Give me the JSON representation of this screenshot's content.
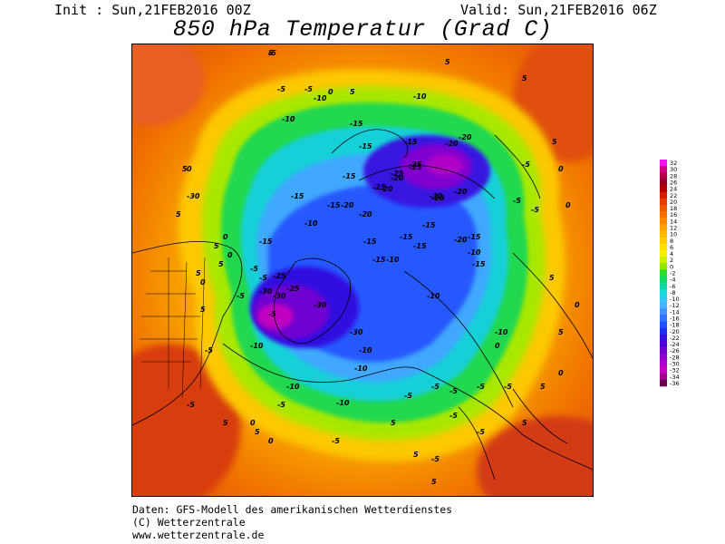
{
  "header": {
    "init": "Init : Sun,21FEB2016 00Z",
    "valid": "Valid: Sun,21FEB2016 06Z",
    "title": "850 hPa Temperatur (Grad C)"
  },
  "legend": {
    "ticks": [
      "32",
      "30",
      "28",
      "26",
      "24",
      "22",
      "20",
      "18",
      "16",
      "14",
      "12",
      "10",
      "8",
      "6",
      "4",
      "2",
      "0",
      "-2",
      "-4",
      "-6",
      "-8",
      "-10",
      "-12",
      "-14",
      "-16",
      "-18",
      "-20",
      "-22",
      "-24",
      "-26",
      "-28",
      "-30",
      "-32",
      "-34",
      "-36"
    ],
    "colors": [
      "#f010f0",
      "#d20084",
      "#b4004a",
      "#9a0022",
      "#b80000",
      "#d21c00",
      "#e63c00",
      "#f05800",
      "#f47000",
      "#f88800",
      "#faa000",
      "#fcb800",
      "#fdcc00",
      "#fde200",
      "#f4f000",
      "#c8f000",
      "#90e800",
      "#30dc30",
      "#10d860",
      "#14d8a0",
      "#18d8d8",
      "#30c8f0",
      "#48b0ff",
      "#4090ff",
      "#3070ff",
      "#2050ff",
      "#2030f0",
      "#3010e0",
      "#5000d8",
      "#7000d0",
      "#9000d0",
      "#b000c8",
      "#c800c0",
      "#a0008c",
      "#6a0050"
    ]
  },
  "map_labels": [
    {
      "t": "5"
    },
    {
      "t": "5"
    },
    {
      "t": "5"
    },
    {
      "t": "5"
    },
    {
      "t": "5"
    },
    {
      "t": "5"
    },
    {
      "t": "5"
    },
    {
      "t": "5"
    },
    {
      "t": "-5"
    },
    {
      "t": "-5"
    },
    {
      "t": "-5"
    },
    {
      "t": "-5"
    },
    {
      "t": "-5"
    },
    {
      "t": "-5"
    },
    {
      "t": "-5"
    },
    {
      "t": "-5"
    },
    {
      "t": "-5"
    },
    {
      "t": "-5"
    },
    {
      "t": "-5"
    },
    {
      "t": "-5"
    },
    {
      "t": "0"
    },
    {
      "t": "0"
    },
    {
      "t": "0"
    },
    {
      "t": "0"
    },
    {
      "t": "0"
    },
    {
      "t": "0"
    },
    {
      "t": "-10"
    },
    {
      "t": "-10"
    },
    {
      "t": "-10"
    },
    {
      "t": "-10"
    },
    {
      "t": "-10"
    },
    {
      "t": "-10"
    },
    {
      "t": "-10"
    },
    {
      "t": "-10"
    },
    {
      "t": "-10"
    },
    {
      "t": "-10"
    },
    {
      "t": "-10"
    },
    {
      "t": "-10"
    },
    {
      "t": "-10"
    },
    {
      "t": "-15"
    },
    {
      "t": "-15"
    },
    {
      "t": "-15"
    },
    {
      "t": "-15"
    },
    {
      "t": "-15"
    },
    {
      "t": "-15"
    },
    {
      "t": "-15"
    },
    {
      "t": "-15"
    },
    {
      "t": "-15"
    },
    {
      "t": "-15"
    },
    {
      "t": "-15"
    },
    {
      "t": "-15"
    },
    {
      "t": "-15"
    },
    {
      "t": "-15"
    },
    {
      "t": "-20"
    },
    {
      "t": "-20"
    },
    {
      "t": "-20"
    },
    {
      "t": "-20"
    },
    {
      "t": "-20"
    },
    {
      "t": "-20"
    },
    {
      "t": "-20"
    },
    {
      "t": "-20"
    },
    {
      "t": "-20"
    },
    {
      "t": "-25"
    },
    {
      "t": "-25"
    },
    {
      "t": "-25"
    },
    {
      "t": "-25"
    },
    {
      "t": "-25"
    },
    {
      "t": "-25"
    },
    {
      "t": "-30"
    },
    {
      "t": "-30"
    },
    {
      "t": "-30"
    },
    {
      "t": "-30"
    },
    {
      "t": "-30"
    },
    {
      "t": "-30"
    },
    {
      "t": "5"
    },
    {
      "t": "5"
    },
    {
      "t": "5"
    },
    {
      "t": "5"
    },
    {
      "t": "5"
    },
    {
      "t": "5"
    },
    {
      "t": "5"
    },
    {
      "t": "5"
    },
    {
      "t": "5"
    },
    {
      "t": "5"
    },
    {
      "t": "5"
    },
    {
      "t": "5"
    },
    {
      "t": "0"
    },
    {
      "t": "0"
    },
    {
      "t": "0"
    },
    {
      "t": "0"
    },
    {
      "t": "0"
    },
    {
      "t": "0"
    },
    {
      "t": "-5"
    },
    {
      "t": "-5"
    },
    {
      "t": "-5"
    },
    {
      "t": "-5"
    },
    {
      "t": "-5"
    },
    {
      "t": "-5"
    },
    {
      "t": "-5"
    },
    {
      "t": "-5"
    },
    {
      "t": "-5"
    },
    {
      "t": "-5"
    }
  ],
  "footer": {
    "line1": "Daten: GFS-Modell des amerikanischen Wetterdienstes",
    "line2": "(C) Wetterzentrale",
    "line3": "www.wetterzentrale.de"
  }
}
